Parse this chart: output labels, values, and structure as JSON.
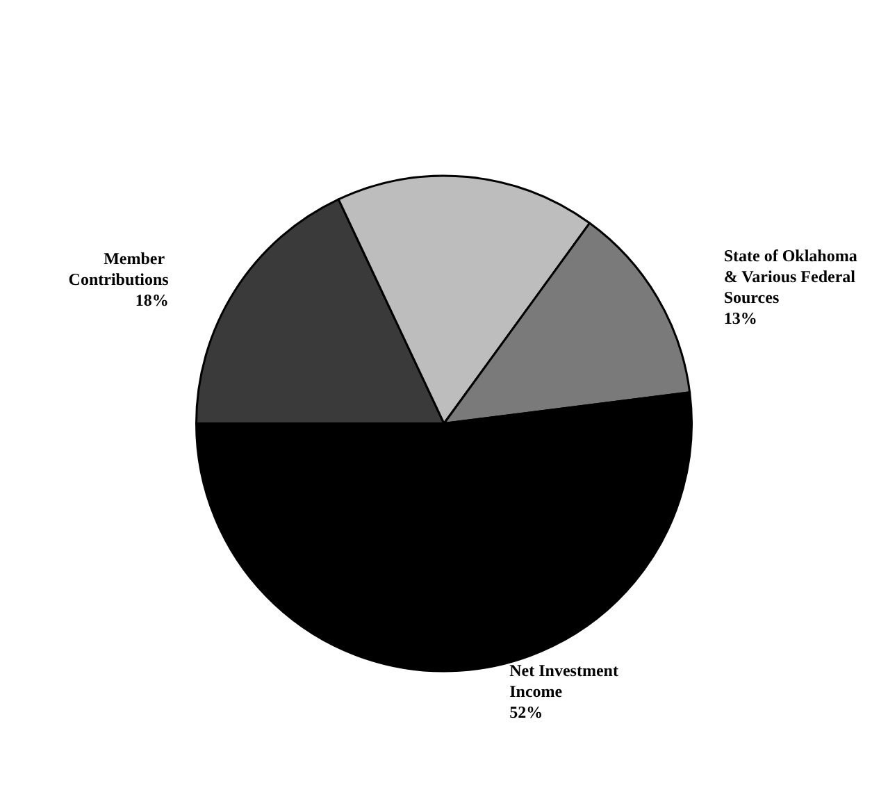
{
  "chart_data": {
    "type": "pie",
    "categories": [
      "Member Contributions",
      null,
      "State of Oklahoma & Various Federal Sources",
      "Net Investment Income"
    ],
    "values": [
      18,
      17,
      13,
      52
    ],
    "value_labels": [
      "18%",
      null,
      "13%",
      "52%"
    ],
    "colors": [
      "#3a3a3a",
      "#bdbdbd",
      "#7a7a7a",
      "#000000"
    ],
    "legend": false
  }
}
